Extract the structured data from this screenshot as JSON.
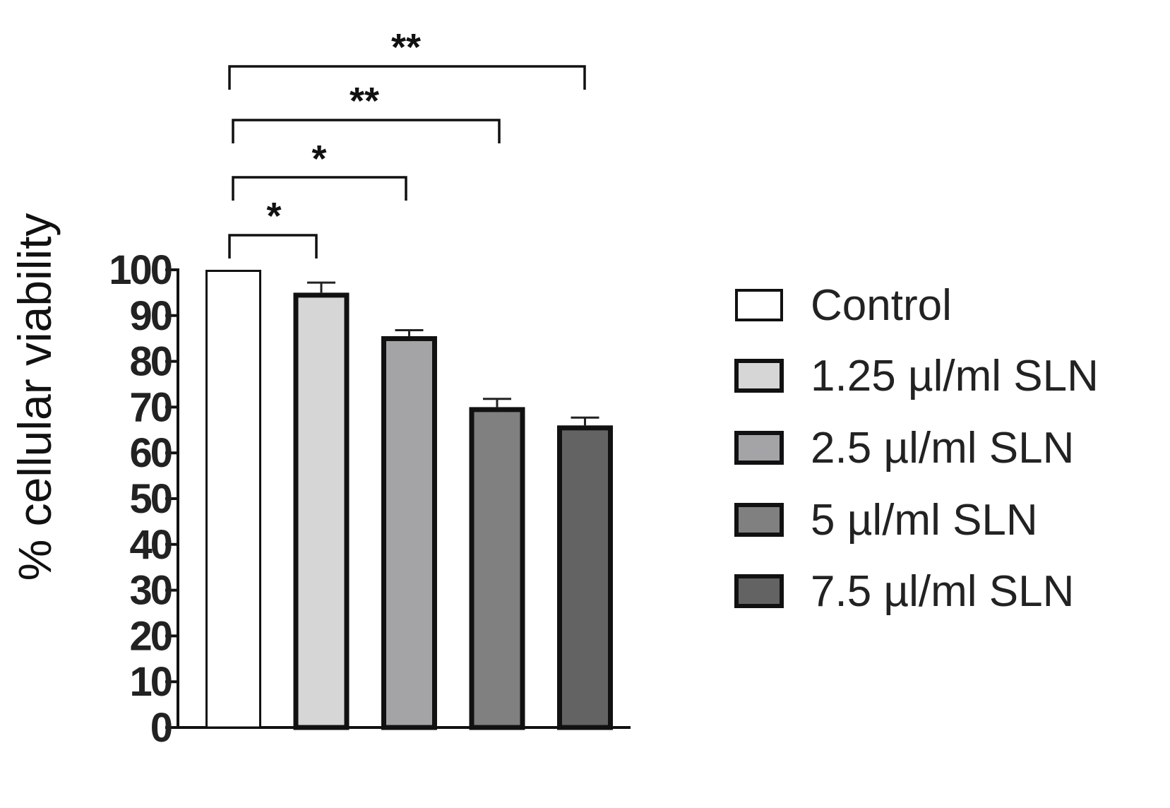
{
  "chart_data": {
    "type": "bar",
    "ylabel": "% cellular viability",
    "xlabel": "",
    "ylim": [
      0,
      100
    ],
    "yticks": [
      0,
      10,
      20,
      30,
      40,
      50,
      60,
      70,
      80,
      90,
      100
    ],
    "grid": false,
    "legend_position": "right",
    "bars": [
      {
        "name": "Control",
        "value": 100,
        "error": 0,
        "color": "#ffffff"
      },
      {
        "name": "1.25 µl/ml SLN",
        "value": 95,
        "error": 2.2,
        "color": "#d6d6d6"
      },
      {
        "name": "2.5 µl/ml SLN",
        "value": 85.5,
        "error": 1.3,
        "color": "#a4a4a6"
      },
      {
        "name": "5 µl/ml SLN",
        "value": 70,
        "error": 1.8,
        "color": "#808080"
      },
      {
        "name": "7.5 µl/ml SLN",
        "value": 66,
        "error": 1.7,
        "color": "#636363"
      }
    ],
    "significance": [
      {
        "from": 0,
        "to": 1,
        "label": "*"
      },
      {
        "from": 0,
        "to": 2,
        "label": "*"
      },
      {
        "from": 0,
        "to": 3,
        "label": "**"
      },
      {
        "from": 0,
        "to": 4,
        "label": "**"
      }
    ]
  }
}
